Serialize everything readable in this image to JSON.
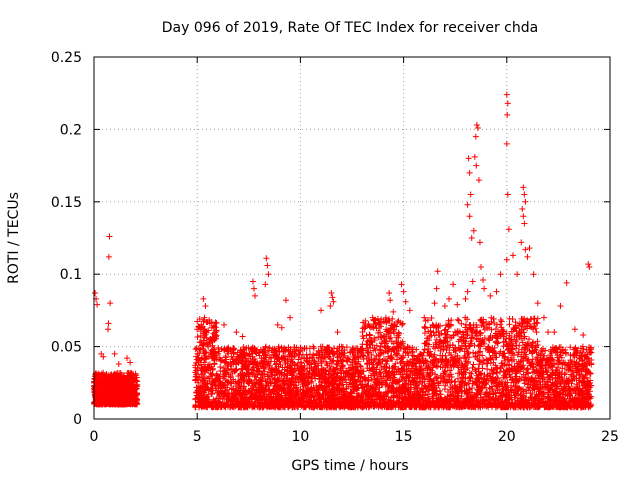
{
  "chart_data": {
    "type": "scatter",
    "title": "Day 096 of 2019, Rate Of TEC Index for receiver chda",
    "xlabel": "GPS time / hours",
    "ylabel": "ROTI / TECUs",
    "xlim": [
      0,
      25
    ],
    "ylim": [
      0,
      0.25
    ],
    "x_ticks": [
      0,
      5,
      10,
      15,
      20,
      25
    ],
    "x_tick_labels": [
      "0",
      "5",
      "10",
      "15",
      "20",
      "25"
    ],
    "y_ticks": [
      0,
      0.05,
      0.1,
      0.15,
      0.2,
      0.25
    ],
    "y_tick_labels": [
      "0",
      "0.05",
      "0.1",
      "0.15",
      "0.2",
      "0.25"
    ],
    "grid": true,
    "marker": "+",
    "colors": {
      "points": "#ff0000",
      "grid": "#a0a0a0",
      "axes": "#000000"
    },
    "series": [
      {
        "name": "ROTI",
        "points": [
          [
            0.05,
            0.087
          ],
          [
            0.1,
            0.083
          ],
          [
            0.15,
            0.079
          ],
          [
            0.35,
            0.045
          ],
          [
            0.45,
            0.043
          ],
          [
            0.75,
            0.126
          ],
          [
            0.72,
            0.112
          ],
          [
            0.78,
            0.08
          ],
          [
            0.7,
            0.066
          ],
          [
            0.68,
            0.062
          ],
          [
            1.0,
            0.045
          ],
          [
            1.2,
            0.038
          ],
          [
            1.6,
            0.042
          ],
          [
            1.75,
            0.039
          ],
          [
            5.3,
            0.083
          ],
          [
            5.4,
            0.078
          ],
          [
            5.35,
            0.07
          ],
          [
            5.2,
            0.065
          ],
          [
            5.0,
            0.062
          ],
          [
            6.3,
            0.065
          ],
          [
            6.9,
            0.06
          ],
          [
            7.2,
            0.057
          ],
          [
            7.7,
            0.095
          ],
          [
            7.75,
            0.09
          ],
          [
            7.8,
            0.085
          ],
          [
            8.35,
            0.111
          ],
          [
            8.4,
            0.106
          ],
          [
            8.45,
            0.1
          ],
          [
            8.3,
            0.093
          ],
          [
            9.3,
            0.082
          ],
          [
            9.5,
            0.07
          ],
          [
            9.1,
            0.063
          ],
          [
            8.9,
            0.065
          ],
          [
            11.0,
            0.075
          ],
          [
            11.5,
            0.087
          ],
          [
            11.55,
            0.084
          ],
          [
            11.6,
            0.081
          ],
          [
            11.45,
            0.078
          ],
          [
            11.8,
            0.06
          ],
          [
            12.0,
            0.05
          ],
          [
            13.5,
            0.07
          ],
          [
            13.9,
            0.064
          ],
          [
            14.3,
            0.087
          ],
          [
            14.35,
            0.082
          ],
          [
            14.5,
            0.074
          ],
          [
            14.9,
            0.093
          ],
          [
            15.0,
            0.088
          ],
          [
            15.1,
            0.081
          ],
          [
            15.3,
            0.075
          ],
          [
            16.0,
            0.07
          ],
          [
            16.5,
            0.08
          ],
          [
            16.6,
            0.09
          ],
          [
            16.65,
            0.102
          ],
          [
            17.0,
            0.078
          ],
          [
            17.2,
            0.083
          ],
          [
            17.4,
            0.093
          ],
          [
            17.6,
            0.079
          ],
          [
            18.0,
            0.083
          ],
          [
            18.15,
            0.18
          ],
          [
            18.2,
            0.17
          ],
          [
            18.25,
            0.155
          ],
          [
            18.1,
            0.148
          ],
          [
            18.2,
            0.14
          ],
          [
            18.3,
            0.125
          ],
          [
            18.4,
            0.13
          ],
          [
            18.35,
            0.095
          ],
          [
            18.1,
            0.088
          ],
          [
            18.55,
            0.203
          ],
          [
            18.6,
            0.201
          ],
          [
            18.5,
            0.195
          ],
          [
            18.45,
            0.181
          ],
          [
            18.52,
            0.175
          ],
          [
            18.65,
            0.165
          ],
          [
            18.7,
            0.122
          ],
          [
            18.75,
            0.105
          ],
          [
            18.85,
            0.096
          ],
          [
            18.9,
            0.09
          ],
          [
            19.2,
            0.085
          ],
          [
            19.5,
            0.088
          ],
          [
            19.7,
            0.1
          ],
          [
            20.0,
            0.224
          ],
          [
            20.05,
            0.218
          ],
          [
            20.02,
            0.21
          ],
          [
            20.0,
            0.19
          ],
          [
            20.05,
            0.155
          ],
          [
            20.1,
            0.131
          ],
          [
            20.0,
            0.11
          ],
          [
            20.3,
            0.113
          ],
          [
            20.5,
            0.1
          ],
          [
            20.8,
            0.16
          ],
          [
            20.85,
            0.155
          ],
          [
            20.9,
            0.15
          ],
          [
            20.75,
            0.145
          ],
          [
            20.8,
            0.14
          ],
          [
            20.85,
            0.135
          ],
          [
            20.7,
            0.122
          ],
          [
            20.9,
            0.117
          ],
          [
            21.0,
            0.112
          ],
          [
            21.1,
            0.118
          ],
          [
            21.3,
            0.1
          ],
          [
            21.5,
            0.08
          ],
          [
            21.8,
            0.07
          ],
          [
            22.0,
            0.06
          ],
          [
            22.3,
            0.06
          ],
          [
            22.6,
            0.078
          ],
          [
            22.9,
            0.094
          ],
          [
            23.3,
            0.062
          ],
          [
            23.7,
            0.058
          ],
          [
            23.95,
            0.107
          ],
          [
            24.0,
            0.105
          ]
        ]
      }
    ]
  }
}
